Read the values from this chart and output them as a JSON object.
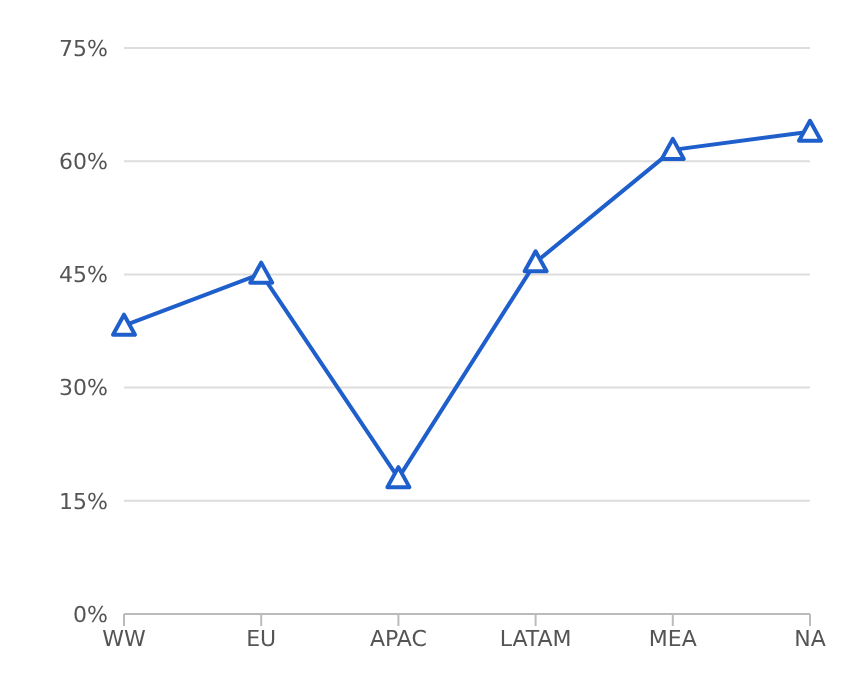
{
  "chart_data": {
    "type": "line",
    "categories": [
      "WW",
      "EU",
      "APAC",
      "LATAM",
      "MEA",
      "NA"
    ],
    "series": [
      {
        "color": "#1f5fcc",
        "values": [
          38.2,
          45.1,
          18,
          46.6,
          61.5,
          63.9
        ]
      }
    ],
    "ylim": [
      0,
      75
    ],
    "yticks": [
      {
        "value": 0,
        "label": "0%"
      },
      {
        "value": 15,
        "label": "15%"
      },
      {
        "value": 30,
        "label": "30%"
      },
      {
        "value": 45,
        "label": "45%"
      },
      {
        "value": 60,
        "label": "60%"
      },
      {
        "value": 75,
        "label": "75%"
      }
    ],
    "grid": "y",
    "marker": "triangle",
    "line_style": "solid",
    "legend": false
  }
}
